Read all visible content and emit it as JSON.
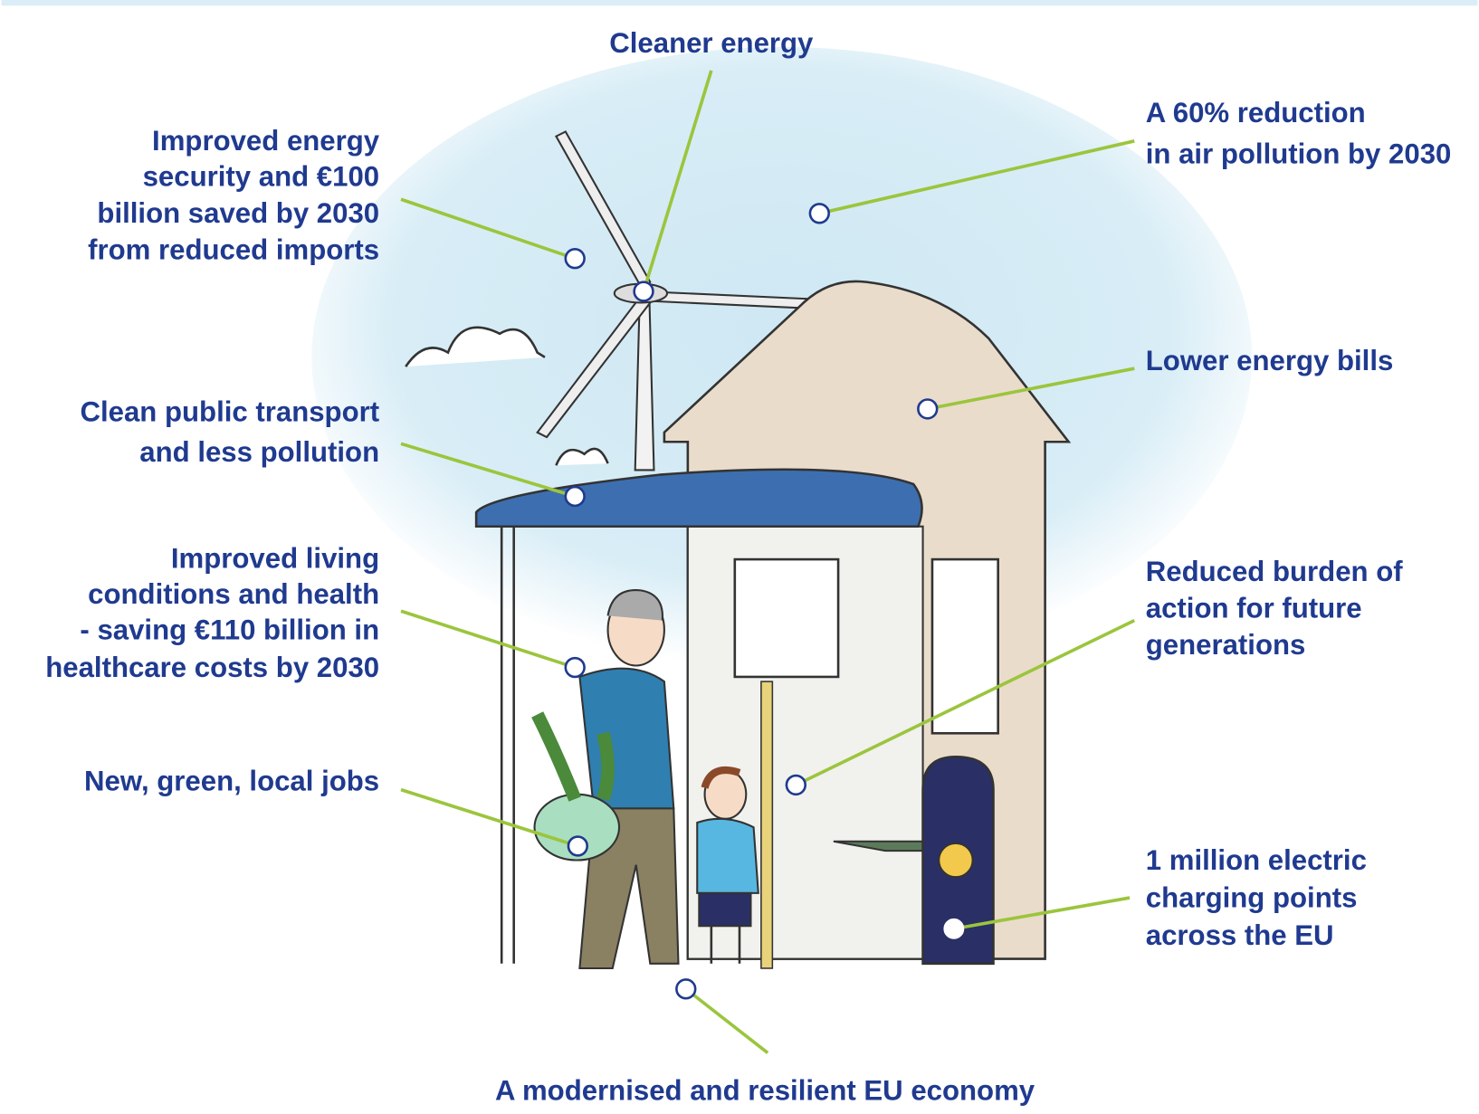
{
  "callouts": [
    {
      "lines": [
        "Cleaner energy"
      ]
    },
    {
      "lines": [
        "Improved energy",
        "security and €100",
        "billion saved by 2030",
        "from reduced imports"
      ]
    },
    {
      "lines": [
        "A 60% reduction",
        "in air pollution by 2030"
      ]
    },
    {
      "lines": [
        "Lower energy bills"
      ]
    },
    {
      "lines": [
        "Clean public transport",
        "and less pollution"
      ]
    },
    {
      "lines": [
        "Improved living",
        "conditions and health",
        "- saving €110 billion in",
        "healthcare costs by 2030"
      ]
    },
    {
      "lines": [
        "Reduced burden of",
        "action for future",
        "generations"
      ]
    },
    {
      "lines": [
        "New, green, local jobs"
      ]
    },
    {
      "lines": [
        "1 million electric",
        "charging points",
        "across the EU"
      ]
    },
    {
      "lines": [
        "A modernised and resilient EU economy"
      ]
    }
  ]
}
